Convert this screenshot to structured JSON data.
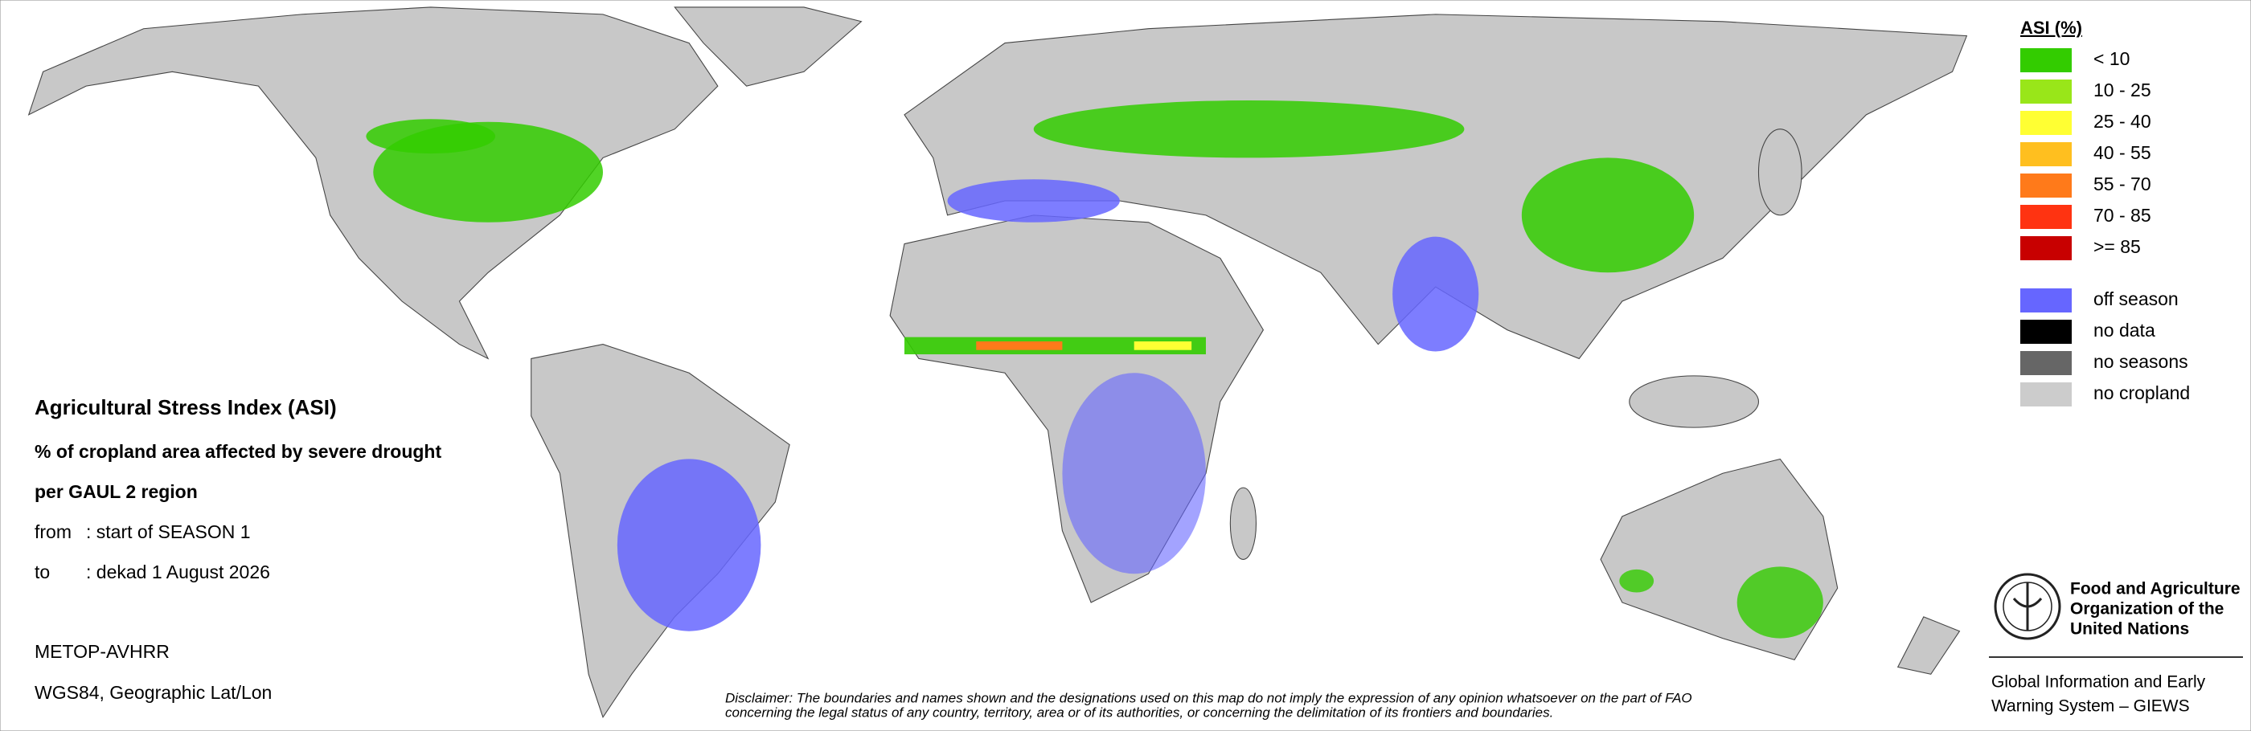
{
  "info": {
    "title": "Agricultural Stress Index (ASI)",
    "subtitle": "% of cropland area affected by severe drought",
    "subtitle2": "per GAUL 2 region",
    "from_label": "from",
    "from_value": ": start of SEASON 1",
    "to_label": "to",
    "to_value": ": dekad 1 August 2026",
    "sensor": "METOP-AVHRR",
    "projection": "WGS84, Geographic Lat/Lon"
  },
  "legend": {
    "title": "ASI (%)",
    "classes": [
      {
        "label": "< 10",
        "color": "#33cc00"
      },
      {
        "label": "10 - 25",
        "color": "#99e619"
      },
      {
        "label": "25 - 40",
        "color": "#ffff33"
      },
      {
        "label": "40 - 55",
        "color": "#ffbf1f"
      },
      {
        "label": "55 - 70",
        "color": "#ff7a1a"
      },
      {
        "label": "70 - 85",
        "color": "#ff3311"
      },
      {
        "label": ">= 85",
        "color": "#c80000"
      }
    ],
    "other": [
      {
        "label": "off season",
        "color": "#6666ff"
      },
      {
        "label": "no data",
        "color": "#000000"
      },
      {
        "label": "no seasons",
        "color": "#666666"
      },
      {
        "label": "no cropland",
        "color": "#cccccc"
      }
    ]
  },
  "disclaimer": [
    "Disclaimer: The boundaries and names shown and the designations used on this map do not imply the expression of any opinion whatsoever on the part of FAO",
    "concerning the legal status of any country, territory, area or of its authorities, or concerning the delimitation of its frontiers and boundaries."
  ],
  "fao": {
    "name": [
      "Food and Agriculture",
      "Organization of the",
      "United Nations"
    ],
    "system": [
      "Global Information and Early",
      "Warning System – GIEWS"
    ]
  }
}
